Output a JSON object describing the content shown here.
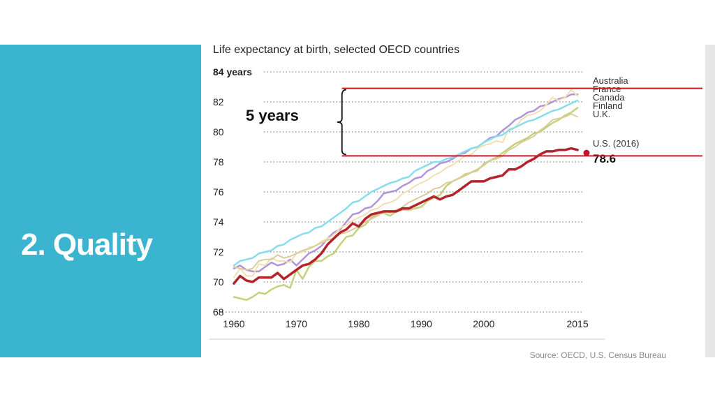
{
  "slide": {
    "title": "2. Quality"
  },
  "colors": {
    "panel": "#3bb4d0",
    "annotation_red": "#d0151d"
  },
  "chart_data": {
    "type": "line",
    "title": "Life expectancy at birth, selected OECD countries",
    "y_unit_label": "84 years",
    "y_tick_labels": [
      "82",
      "80",
      "78",
      "76",
      "74",
      "72",
      "70",
      "68"
    ],
    "x_tick_labels": [
      "1960",
      "1970",
      "1980",
      "1990",
      "2000",
      "2015"
    ],
    "xlim": [
      1960,
      2016
    ],
    "ylim": [
      68,
      84
    ],
    "x_ticks": [
      1960,
      1970,
      1980,
      1990,
      2000,
      2015
    ],
    "y_ticks": [
      68,
      70,
      72,
      74,
      76,
      78,
      80,
      82,
      84
    ],
    "grid": true,
    "source": "Source: OECD, U.S. Census Bureau",
    "x": [
      1960,
      1961,
      1962,
      1963,
      1964,
      1965,
      1966,
      1967,
      1968,
      1969,
      1970,
      1971,
      1972,
      1973,
      1974,
      1975,
      1976,
      1977,
      1978,
      1979,
      1980,
      1981,
      1982,
      1983,
      1984,
      1985,
      1986,
      1987,
      1988,
      1989,
      1990,
      1991,
      1992,
      1993,
      1994,
      1995,
      1996,
      1997,
      1998,
      1999,
      2000,
      2001,
      2002,
      2003,
      2004,
      2005,
      2006,
      2007,
      2008,
      2009,
      2010,
      2011,
      2012,
      2013,
      2014,
      2015
    ],
    "series": [
      {
        "name": "Australia",
        "color": "#b294d9",
        "width": 2.5,
        "values": [
          70.9,
          71.1,
          70.8,
          70.7,
          70.7,
          71.0,
          71.3,
          71.1,
          71.2,
          71.5,
          71.1,
          71.5,
          71.9,
          72.1,
          72.4,
          72.9,
          73.3,
          73.5,
          74.0,
          74.5,
          74.6,
          74.9,
          75.0,
          75.4,
          75.9,
          76.0,
          76.1,
          76.4,
          76.6,
          76.9,
          77.0,
          77.4,
          77.6,
          77.9,
          78.0,
          78.2,
          78.5,
          78.6,
          78.9,
          79.0,
          79.3,
          79.6,
          79.7,
          80.1,
          80.4,
          80.8,
          81.0,
          81.3,
          81.4,
          81.7,
          81.8,
          82.0,
          82.2,
          82.3,
          82.5,
          82.5
        ]
      },
      {
        "name": "France",
        "color": "#f2dfb1",
        "width": 2,
        "values": [
          70.3,
          70.9,
          70.4,
          70.4,
          71.2,
          71.1,
          71.6,
          71.4,
          71.4,
          71.3,
          71.9,
          72.0,
          72.3,
          72.4,
          72.7,
          72.9,
          73.1,
          73.6,
          73.8,
          74.1,
          74.3,
          74.5,
          74.8,
          74.9,
          75.2,
          75.3,
          75.5,
          75.9,
          76.1,
          76.4,
          76.6,
          76.8,
          77.1,
          77.3,
          77.6,
          77.8,
          78.1,
          78.4,
          78.5,
          78.9,
          79.1,
          79.2,
          79.4,
          79.3,
          80.2,
          80.3,
          80.8,
          81.1,
          81.2,
          81.4,
          81.8,
          82.3,
          82.1,
          82.3,
          82.8,
          82.4
        ]
      },
      {
        "name": "Canada",
        "color": "#86ddec",
        "width": 2.5,
        "values": [
          71.1,
          71.4,
          71.5,
          71.6,
          71.9,
          72.0,
          72.1,
          72.4,
          72.5,
          72.8,
          73.0,
          73.2,
          73.3,
          73.6,
          73.7,
          74.0,
          74.3,
          74.6,
          74.9,
          75.3,
          75.4,
          75.7,
          76.0,
          76.2,
          76.4,
          76.6,
          76.7,
          76.9,
          77.0,
          77.4,
          77.6,
          77.8,
          78.0,
          78.0,
          78.2,
          78.3,
          78.5,
          78.7,
          78.9,
          79.0,
          79.3,
          79.5,
          79.7,
          79.8,
          80.1,
          80.3,
          80.5,
          80.7,
          80.8,
          81.0,
          81.2,
          81.4,
          81.5,
          81.7,
          81.9,
          82.1
        ]
      },
      {
        "name": "Finland",
        "color": "#c3d27d",
        "width": 2.5,
        "values": [
          69.0,
          68.9,
          68.8,
          69.0,
          69.3,
          69.2,
          69.5,
          69.7,
          69.8,
          69.6,
          70.8,
          70.2,
          71.0,
          71.4,
          71.4,
          71.7,
          71.9,
          72.5,
          73.0,
          73.1,
          73.6,
          73.8,
          74.3,
          74.5,
          74.6,
          74.4,
          74.7,
          74.8,
          74.8,
          74.9,
          75.0,
          75.4,
          75.6,
          75.8,
          76.4,
          76.7,
          76.9,
          77.1,
          77.3,
          77.5,
          77.8,
          78.1,
          78.3,
          78.6,
          78.9,
          79.2,
          79.4,
          79.6,
          79.9,
          80.0,
          80.3,
          80.6,
          80.8,
          81.1,
          81.3,
          81.6
        ]
      },
      {
        "name": "U.K.",
        "color": "#dccb9c",
        "width": 2,
        "values": [
          71.0,
          70.9,
          70.8,
          70.9,
          71.4,
          71.5,
          71.5,
          71.8,
          71.6,
          71.7,
          71.9,
          72.1,
          72.2,
          72.4,
          72.6,
          72.8,
          72.9,
          73.2,
          73.3,
          73.5,
          73.7,
          74.0,
          74.2,
          74.4,
          74.7,
          74.6,
          74.8,
          75.0,
          75.3,
          75.5,
          75.7,
          75.9,
          76.2,
          76.3,
          76.6,
          76.7,
          76.9,
          77.2,
          77.3,
          77.4,
          77.9,
          78.1,
          78.2,
          78.4,
          78.8,
          79.0,
          79.3,
          79.5,
          79.7,
          80.1,
          80.4,
          80.8,
          80.9,
          81.0,
          81.2,
          81.0
        ]
      },
      {
        "name": "U.S. (2016)",
        "color": "#b5232a",
        "width": 3.5,
        "values": [
          69.9,
          70.4,
          70.1,
          70.0,
          70.3,
          70.3,
          70.3,
          70.6,
          70.2,
          70.5,
          70.8,
          71.1,
          71.2,
          71.5,
          71.9,
          72.5,
          72.9,
          73.3,
          73.5,
          73.9,
          73.7,
          74.2,
          74.5,
          74.6,
          74.7,
          74.7,
          74.7,
          74.9,
          74.9,
          75.1,
          75.3,
          75.5,
          75.7,
          75.5,
          75.7,
          75.8,
          76.1,
          76.4,
          76.7,
          76.7,
          76.7,
          76.9,
          77.0,
          77.1,
          77.5,
          77.5,
          77.7,
          78.0,
          78.2,
          78.5,
          78.7,
          78.7,
          78.8,
          78.8,
          78.9,
          78.8
        ]
      }
    ],
    "end_point": {
      "label": "78.6",
      "x": 2016,
      "y": 78.6
    },
    "annotation": {
      "label": "5 years",
      "upper_y": 82.9,
      "lower_y": 78.4,
      "start_year": 1977.3
    }
  }
}
